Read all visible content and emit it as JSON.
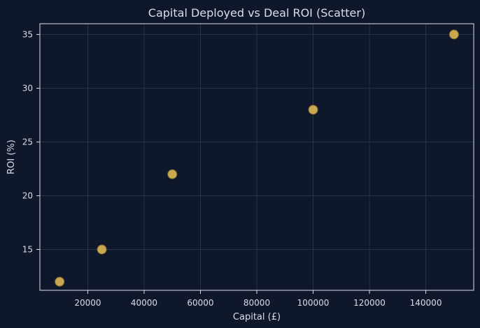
{
  "colors": {
    "background": "#0f172a",
    "axes_face": "#0f172a",
    "spine": "#dbe3ee",
    "grid": "#2a3447",
    "text": "#d8dee8",
    "point": "#c9a84f",
    "point_edge": "#7f6a2f"
  },
  "chart_data": {
    "type": "scatter",
    "title": "Capital Deployed vs Deal ROI (Scatter)",
    "xlabel": "Capital (£)",
    "ylabel": "ROI (%)",
    "xlim": [
      3000,
      157000
    ],
    "ylim": [
      11.2,
      36.0
    ],
    "xticks": [
      20000,
      40000,
      60000,
      80000,
      100000,
      120000,
      140000
    ],
    "yticks": [
      15,
      20,
      25,
      30,
      35
    ],
    "grid": true,
    "points": [
      {
        "x": 10000,
        "y": 12
      },
      {
        "x": 25000,
        "y": 15
      },
      {
        "x": 50000,
        "y": 22
      },
      {
        "x": 100000,
        "y": 28
      },
      {
        "x": 150000,
        "y": 35
      }
    ]
  }
}
